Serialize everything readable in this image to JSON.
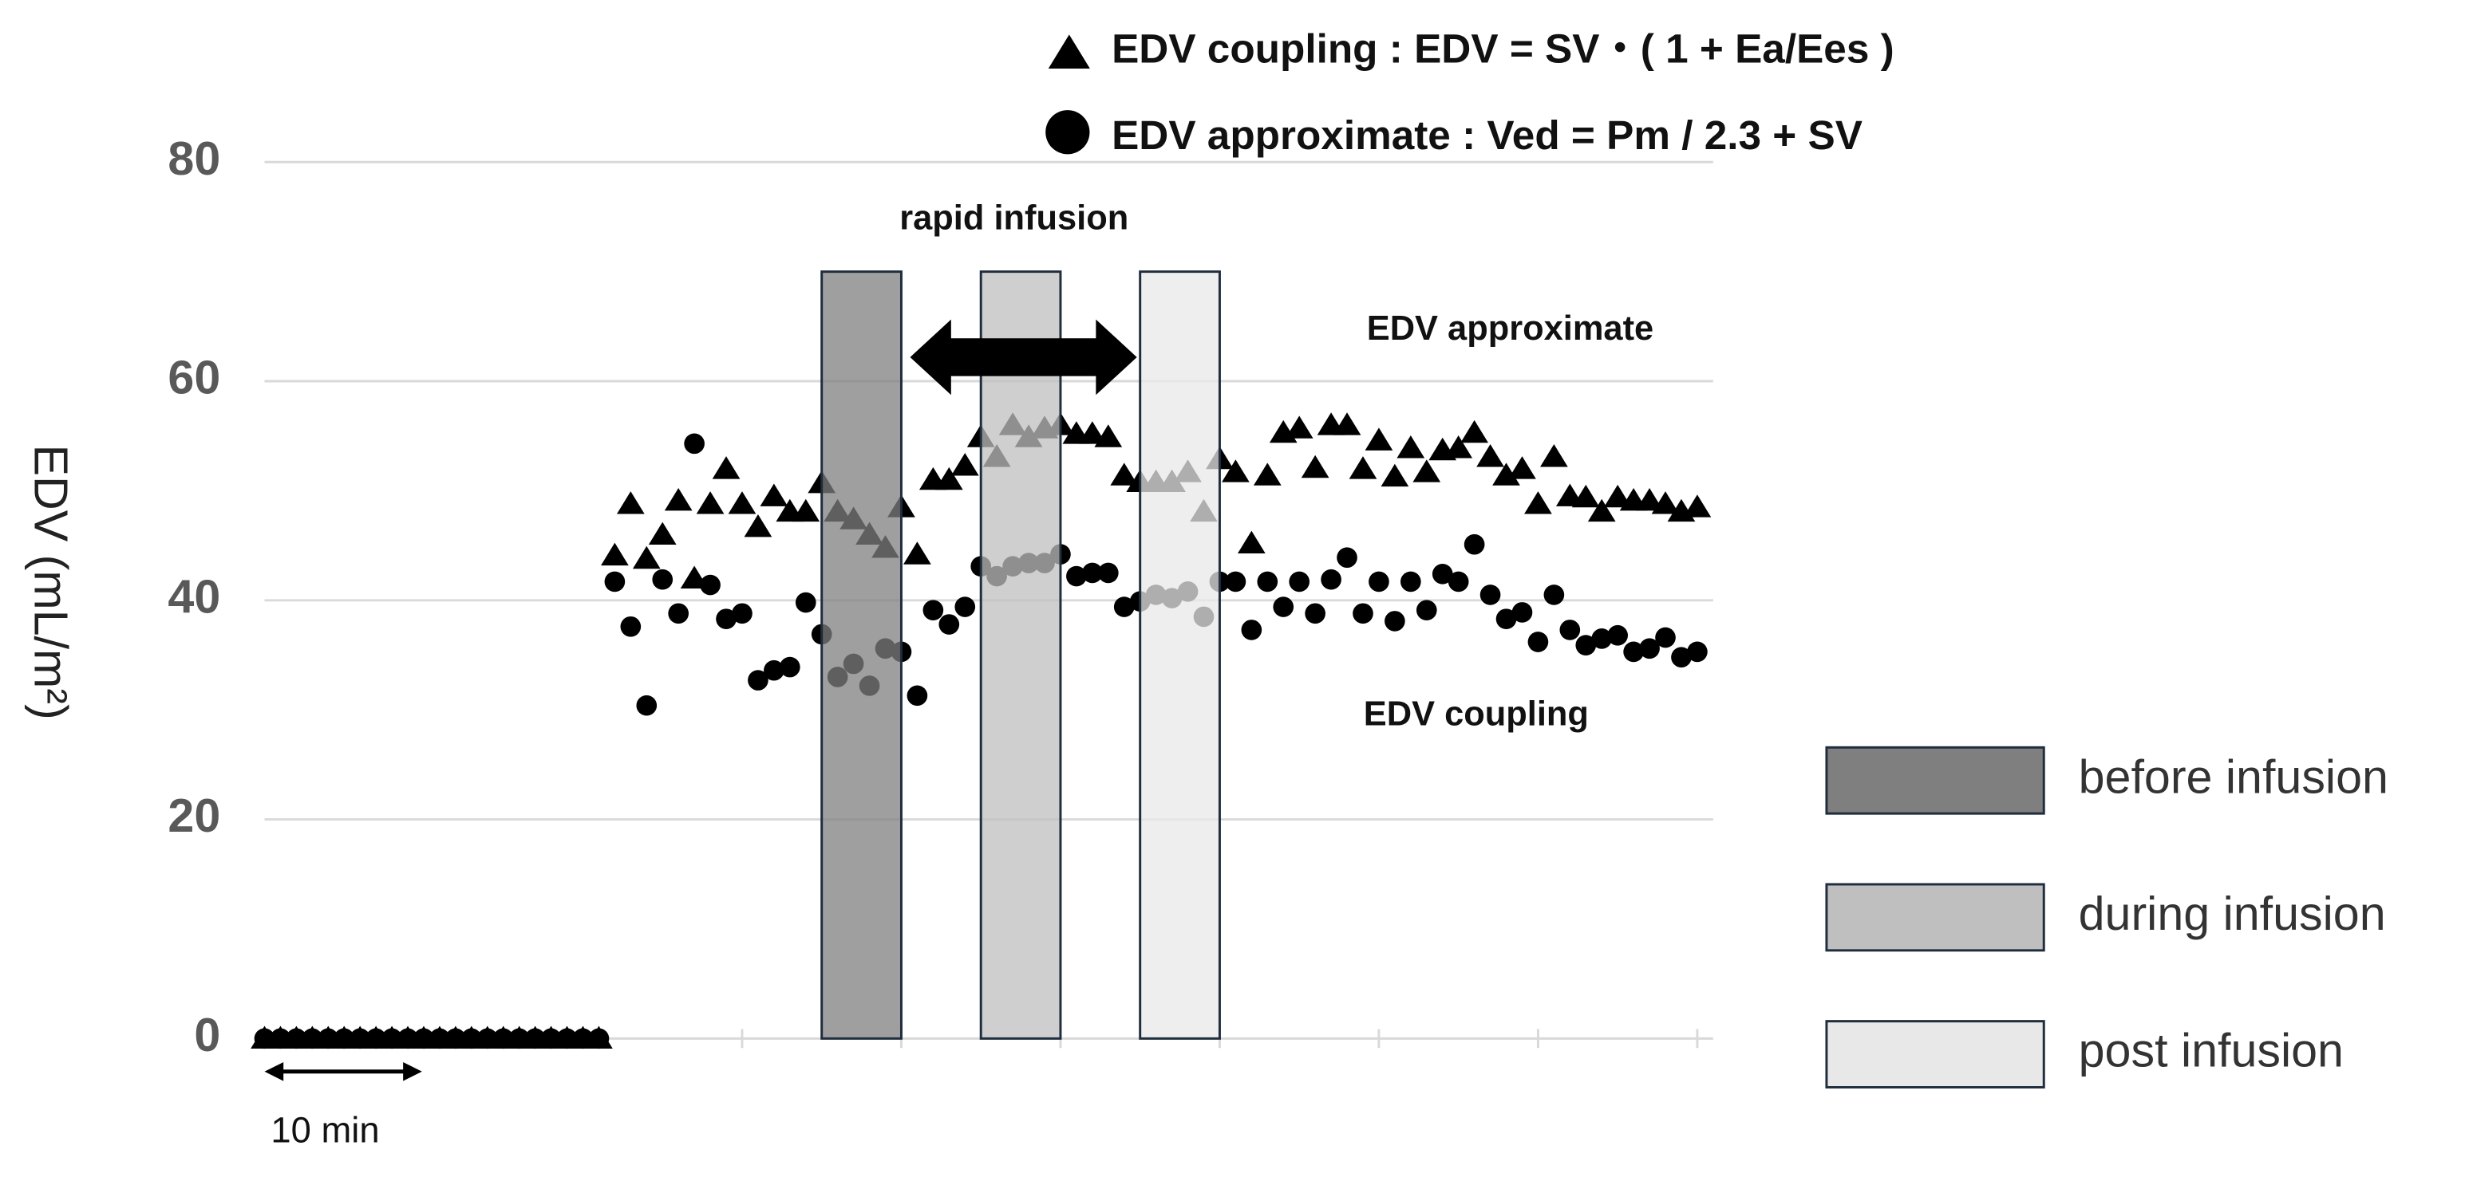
{
  "chart_data": {
    "type": "scatter",
    "ylabel": "EDV (mL/m²)",
    "xlim": [
      0,
      91
    ],
    "xticks": [
      0,
      10,
      20,
      30,
      40,
      50,
      60,
      70,
      80,
      90
    ],
    "ylim": [
      0,
      80
    ],
    "yticks": [
      0,
      20,
      40,
      60,
      80
    ],
    "grid": true,
    "x": [
      0,
      1,
      2,
      3,
      4,
      5,
      6,
      7,
      8,
      9,
      10,
      11,
      12,
      13,
      14,
      15,
      16,
      17,
      18,
      19,
      20,
      21,
      22,
      23,
      24,
      25,
      26,
      27,
      28,
      29,
      30,
      31,
      32,
      33,
      34,
      35,
      36,
      37,
      38,
      39,
      40,
      41,
      42,
      43,
      44,
      45,
      46,
      47,
      48,
      49,
      50,
      51,
      52,
      53,
      54,
      55,
      56,
      57,
      58,
      59,
      60,
      61,
      62,
      63,
      64,
      65,
      66,
      67,
      68,
      69,
      70,
      71,
      72,
      73,
      74,
      75,
      76,
      77,
      78,
      79,
      80,
      81,
      82,
      83,
      84,
      85,
      86,
      87,
      88,
      89,
      90
    ],
    "series": [
      {
        "name": "EDV coupling : EDV = SV・( 1 + Ea/Ees )",
        "marker": "triangle",
        "color": "#000000",
        "values": [
          0,
          0,
          0,
          0,
          0,
          0,
          0,
          0,
          0,
          0,
          0,
          0,
          0,
          0,
          0,
          0,
          0,
          0,
          0,
          0,
          0,
          0,
          44.1,
          48.8,
          43.8,
          46,
          49.1,
          42,
          48.8,
          52,
          48.8,
          46.7,
          49.5,
          48.1,
          48.1,
          50.7,
          48.1,
          47.4,
          46,
          44.8,
          48.5,
          44.2,
          51,
          51,
          52.3,
          54.9,
          53.1,
          56,
          54.9,
          55.7,
          56,
          55.2,
          55.2,
          54.9,
          51.4,
          50.8,
          50.8,
          50.8,
          51.7,
          48.1,
          52.9,
          51.7,
          45.2,
          51.4,
          55.3,
          55.7,
          52.1,
          56,
          56,
          52,
          54.6,
          51.3,
          53.9,
          51.7,
          53.7,
          53.9,
          55.3,
          53.1,
          51.4,
          52,
          48.8,
          53.1,
          49.5,
          49.4,
          48.1,
          49.4,
          49.1,
          49.1,
          48.8,
          48.1,
          48.5
        ]
      },
      {
        "name": "EDV approximate : Ved = Pm / 2.3 + SV",
        "marker": "circle",
        "color": "#000000",
        "values": [
          0,
          0,
          0,
          0,
          0,
          0,
          0,
          0,
          0,
          0,
          0,
          0,
          0,
          0,
          0,
          0,
          0,
          0,
          0,
          0,
          0,
          0,
          41.7,
          37.6,
          30.4,
          41.9,
          38.8,
          54.3,
          41.4,
          38.3,
          38.8,
          32.7,
          33.6,
          33.9,
          39.8,
          36.9,
          33,
          34.2,
          32.2,
          35.6,
          35.3,
          31.3,
          39.1,
          37.8,
          39.4,
          43.1,
          42.2,
          43.1,
          43.4,
          43.4,
          44.2,
          42.2,
          42.5,
          42.5,
          39.4,
          39.9,
          40.5,
          40.2,
          40.8,
          38.5,
          41.7,
          41.7,
          37.3,
          41.7,
          39.4,
          41.7,
          38.8,
          41.9,
          43.9,
          38.8,
          41.7,
          38.1,
          41.7,
          39.1,
          42.4,
          41.7,
          45.1,
          40.5,
          38.3,
          38.9,
          36.2,
          40.5,
          37.3,
          35.9,
          36.5,
          36.8,
          35.3,
          35.6,
          36.6,
          34.8,
          35.3
        ]
      }
    ],
    "regions": [
      {
        "name": "before infusion",
        "color": "#7f7f7f",
        "x0": 35,
        "x1": 40,
        "top": 70
      },
      {
        "name": "during infusion",
        "color": "#bfbfbf",
        "x0": 45,
        "x1": 50,
        "top": 70
      },
      {
        "name": "post infusion",
        "color": "#e8e8e8",
        "x0": 55,
        "x1": 60,
        "top": 70
      }
    ],
    "annotations": {
      "infusion": "rapid infusion",
      "upper": "EDV approximate",
      "lower": "EDV coupling",
      "scale": "10 min"
    }
  }
}
